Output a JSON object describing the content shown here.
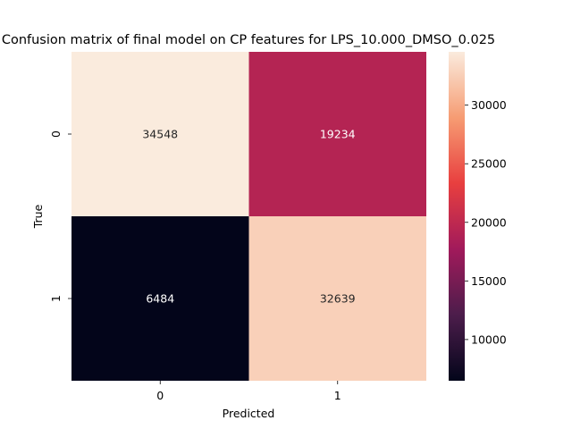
{
  "chart_data": {
    "type": "heatmap",
    "title": "Confusion matrix of final model on CP features for LPS_10.000_DMSO_0.025",
    "xlabel": "Predicted",
    "ylabel": "True",
    "x_categories": [
      "0",
      "1"
    ],
    "y_categories": [
      "0",
      "1"
    ],
    "values": [
      [
        34548,
        19234
      ],
      [
        6484,
        32639
      ]
    ],
    "colorbar": {
      "range": [
        6484,
        34548
      ],
      "ticks": [
        10000,
        15000,
        20000,
        25000,
        30000
      ]
    },
    "colormap": [
      "#03051a",
      "#4c1d4b",
      "#a11a5b",
      "#e83f3f",
      "#f69c73",
      "#faebdd"
    ]
  }
}
